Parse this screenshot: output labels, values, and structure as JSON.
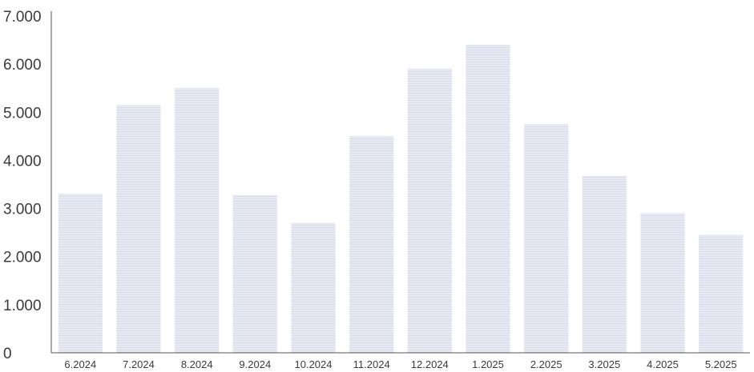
{
  "chart_data": {
    "type": "bar",
    "title": "",
    "xlabel": "",
    "ylabel": "",
    "categories": [
      "6.2024",
      "7.2024",
      "8.2024",
      "9.2024",
      "10.2024",
      "11.2024",
      "12.2024",
      "1.2025",
      "2.2025",
      "3.2025",
      "4.2025",
      "5.2025"
    ],
    "values": [
      3300,
      5150,
      5500,
      3280,
      2700,
      4500,
      5900,
      6400,
      4750,
      3680,
      2900,
      2450
    ],
    "ylim": [
      0,
      7000
    ],
    "yticks": [
      0,
      1000,
      2000,
      3000,
      4000,
      5000,
      6000,
      7000
    ],
    "ytick_labels": [
      "0",
      "1.000",
      "2.000",
      "3.000",
      "4.000",
      "5.000",
      "6.000",
      "7.000"
    ],
    "grid": false,
    "legend": "none",
    "colors": {
      "bar": "#e7eaf3",
      "bar_stripe": "#d9dde9",
      "axis": "#555555",
      "text": "#3a3a3a",
      "background": "#ffffff"
    }
  }
}
